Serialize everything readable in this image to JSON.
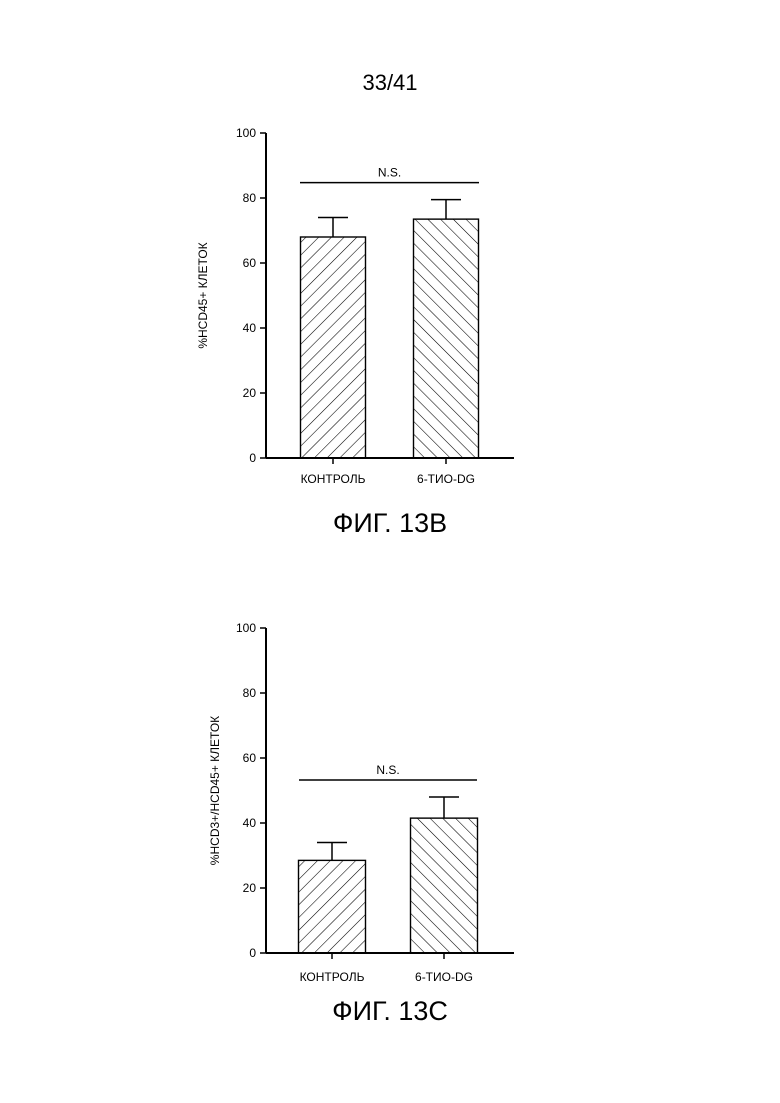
{
  "page": {
    "number": "33/41"
  },
  "figures": [
    {
      "caption": "ФИГ. 13B"
    },
    {
      "caption": "ФИГ. 13C"
    }
  ],
  "chart_data": [
    {
      "type": "bar",
      "categories": [
        "КОНТРОЛЬ",
        "6-ТИО-DG"
      ],
      "values": [
        68,
        73.5
      ],
      "error": [
        6,
        6
      ],
      "ylabel": "%HCD45+ КЛЕТОК",
      "xlabel": "",
      "ylim": [
        0,
        100
      ],
      "yticks": [
        0,
        20,
        40,
        60,
        80,
        100
      ],
      "annotation": "N.S.",
      "hatch": [
        "forward",
        "backward"
      ],
      "grid": false
    },
    {
      "type": "bar",
      "categories": [
        "КОНТРОЛЬ",
        "6-ТИО-DG"
      ],
      "values": [
        28.5,
        41.5
      ],
      "error": [
        5.5,
        6.5
      ],
      "ylabel": "%HCD3+/HCD45+ КЛЕТОК",
      "xlabel": "",
      "ylim": [
        0,
        100
      ],
      "yticks": [
        0,
        20,
        40,
        60,
        80,
        100
      ],
      "annotation": "N.S.",
      "hatch": [
        "forward",
        "backward"
      ],
      "grid": false
    }
  ]
}
